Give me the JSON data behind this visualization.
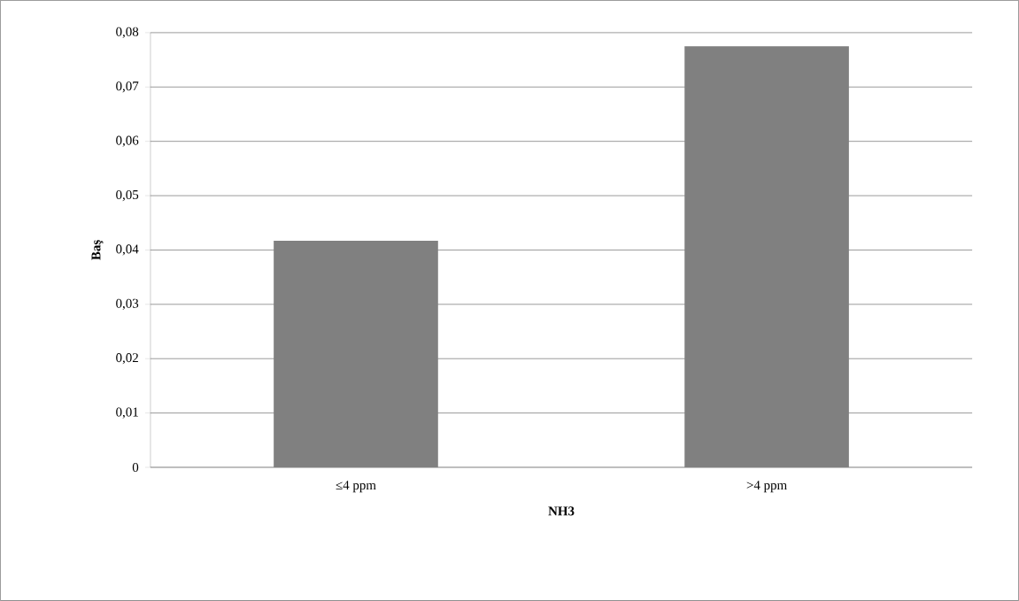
{
  "chart_data": {
    "type": "bar",
    "xlabel": "NH3",
    "ylabel": "Baş",
    "categories": [
      "≤4 ppm",
      ">4 ppm"
    ],
    "values": [
      0.0417,
      0.0775
    ],
    "color": "#808080",
    "ylim": [
      0,
      0.08
    ],
    "yticks": [
      {
        "value": 0,
        "label": "0"
      },
      {
        "value": 0.01,
        "label": "0,01"
      },
      {
        "value": 0.02,
        "label": "0,02"
      },
      {
        "value": 0.03,
        "label": "0,03"
      },
      {
        "value": 0.04,
        "label": "0,04"
      },
      {
        "value": 0.05,
        "label": "0,05"
      },
      {
        "value": 0.06,
        "label": "0,06"
      },
      {
        "value": 0.07,
        "label": "0,07"
      },
      {
        "value": 0.08,
        "label": "0,08"
      }
    ],
    "grid": "y"
  }
}
